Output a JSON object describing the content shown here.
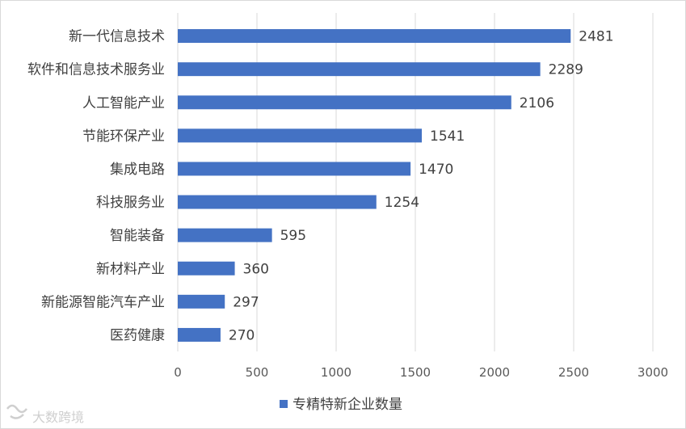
{
  "chart_data": {
    "type": "bar",
    "orientation": "horizontal",
    "categories": [
      "新一代信息技术",
      "软件和信息技术服务业",
      "人工智能产业",
      "节能环保产业",
      "集成电路",
      "科技服务业",
      "智能装备",
      "新材料产业",
      "新能源智能汽车产业",
      "医药健康"
    ],
    "series": [
      {
        "name": "专精特新企业数量",
        "values": [
          2481,
          2289,
          2106,
          1541,
          1470,
          1254,
          595,
          360,
          297,
          270
        ],
        "color": "#4472c4"
      }
    ],
    "xlim": [
      0,
      3000
    ],
    "xticks": [
      0,
      500,
      1000,
      1500,
      2000,
      2500,
      3000
    ],
    "grid": true,
    "legend_position": "bottom",
    "data_labels": true
  },
  "watermark": {
    "text": "大数跨境"
  },
  "colors": {
    "bar": "#4472c4",
    "grid": "#d9d9d9",
    "text": "#404040"
  }
}
